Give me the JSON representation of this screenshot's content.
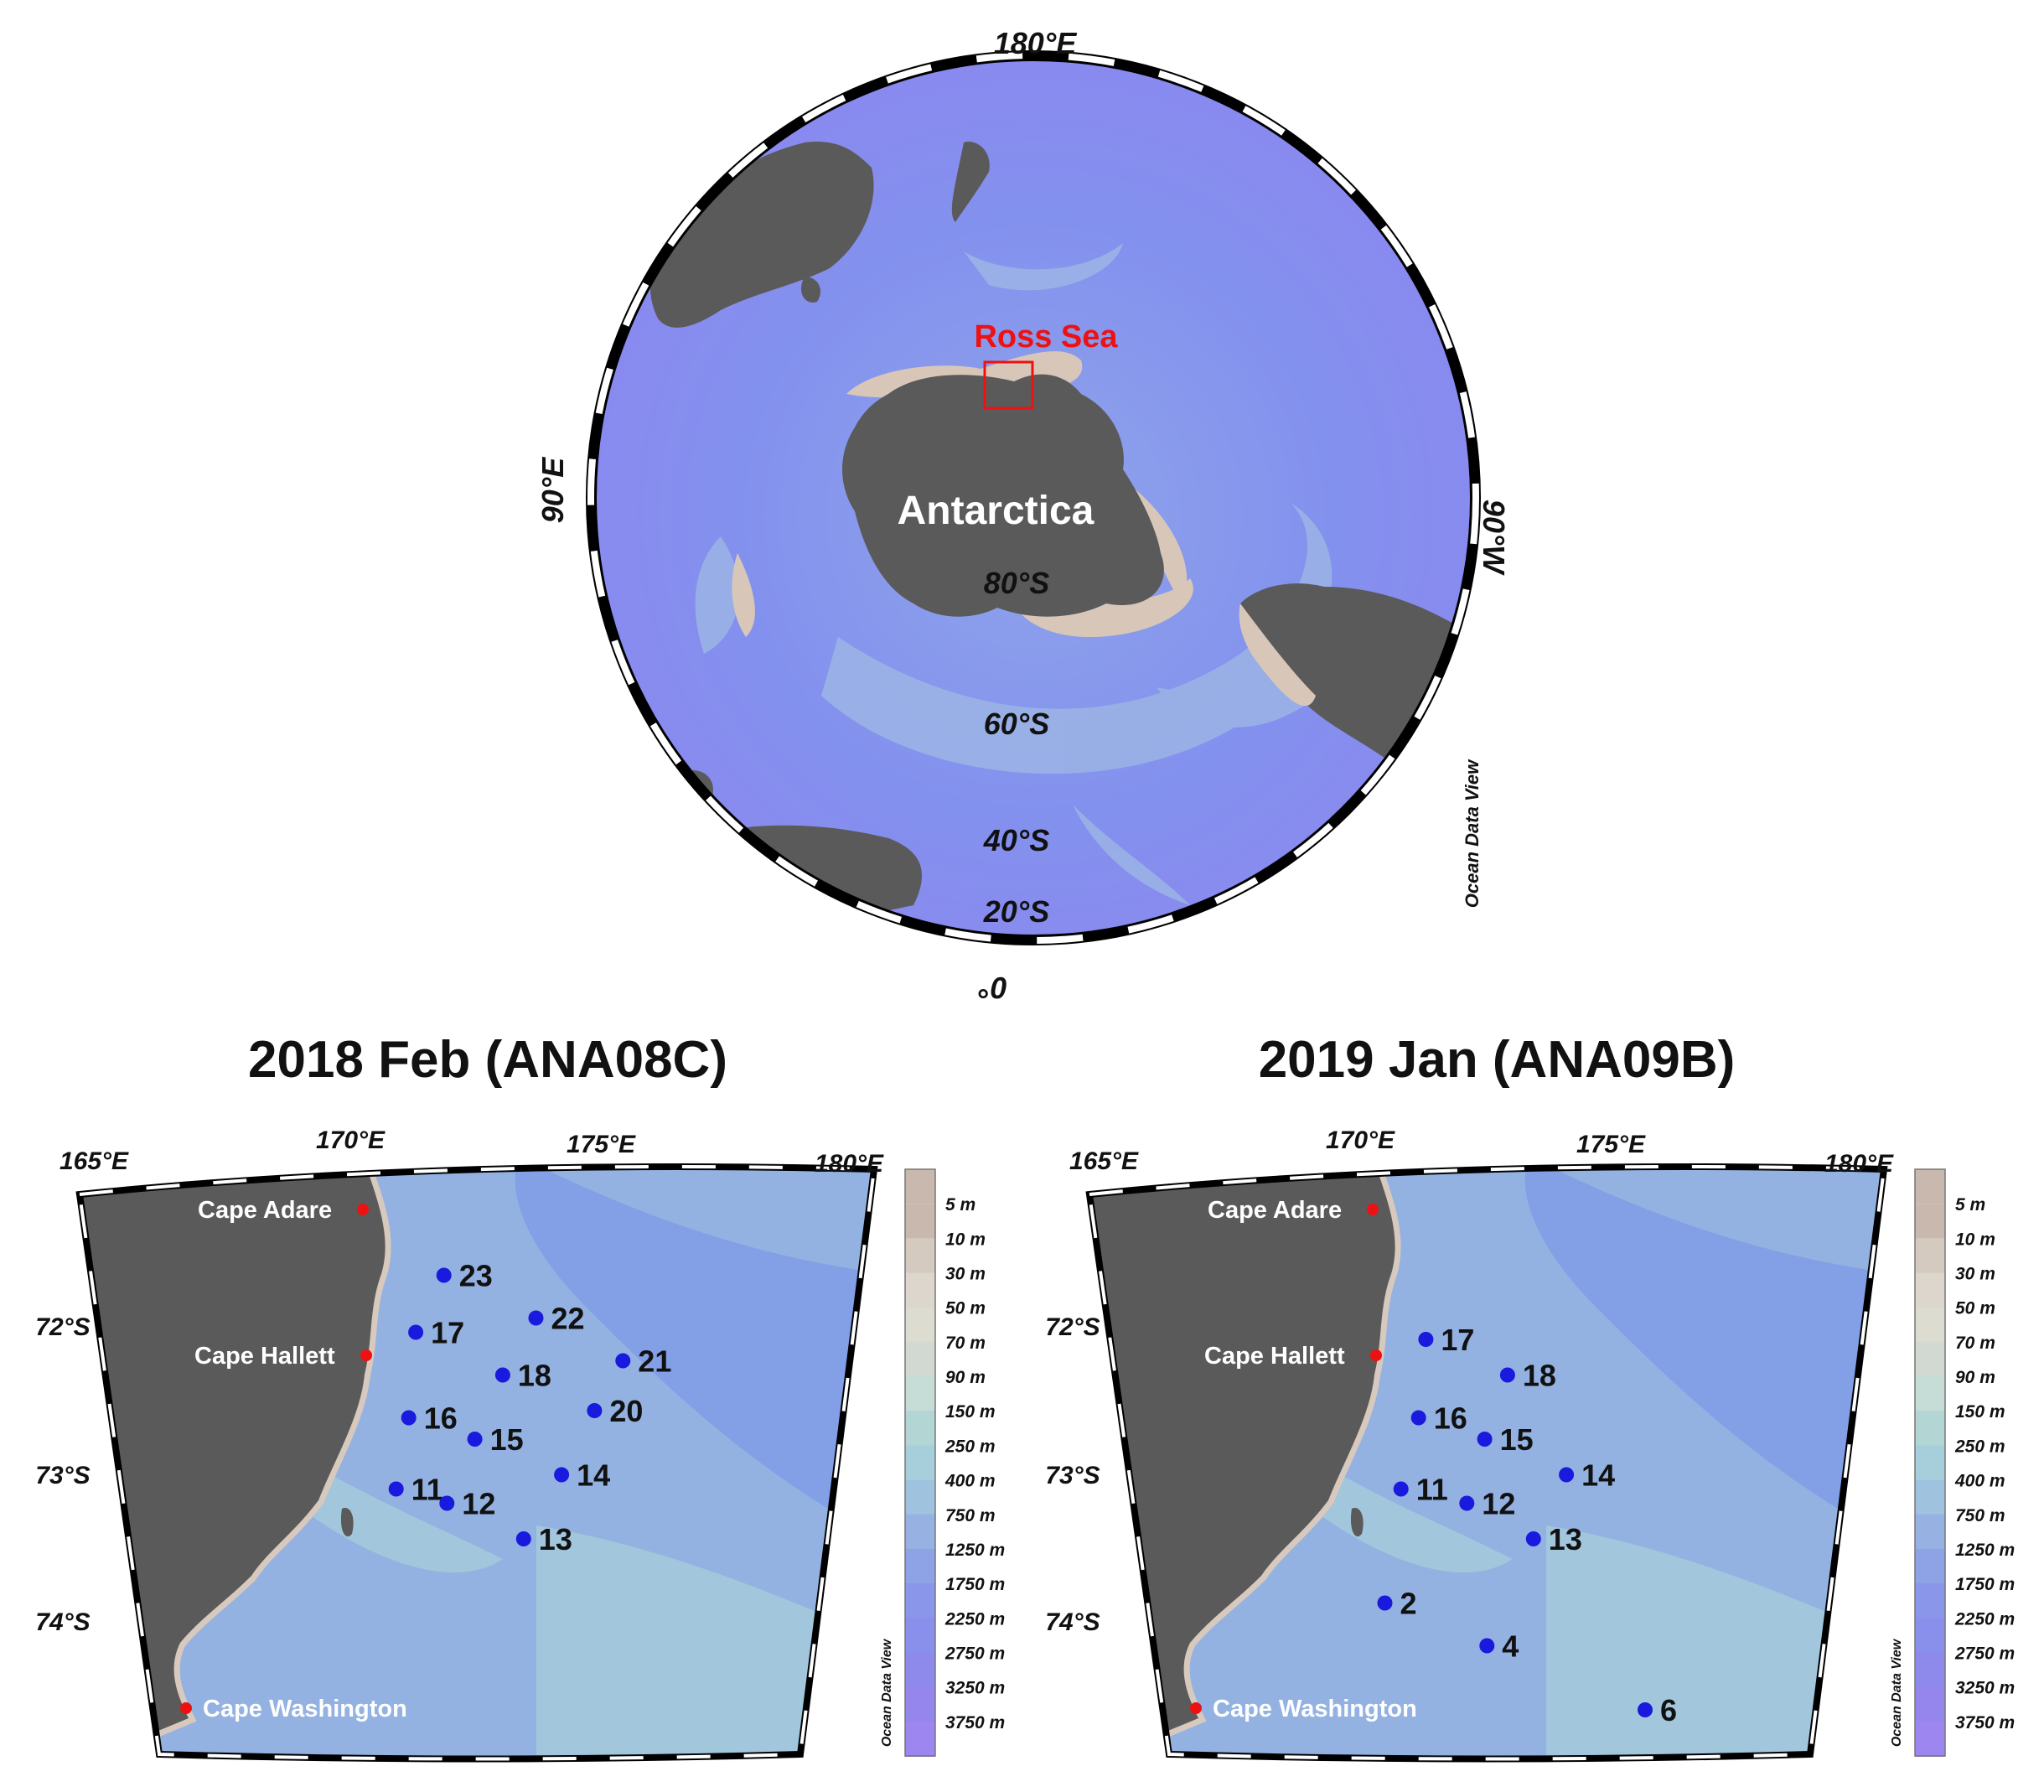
{
  "globe": {
    "labels": {
      "top": "180°E",
      "left": "90°E",
      "right": "90°W",
      "bottom": "0°",
      "region": "Ross Sea",
      "continent": "Antarctica",
      "lat80": "80°S",
      "lat60": "60°S",
      "lat40": "40°S",
      "lat20": "20°S"
    },
    "watermark": "Ocean Data View"
  },
  "maps": [
    {
      "title": "2018 Feb (ANA08C)",
      "lon_labels": [
        "165°E",
        "170°E",
        "175°E",
        "180°E"
      ],
      "lat_labels": [
        "72°S",
        "73°S",
        "74°S"
      ],
      "places": [
        "Cape Adare",
        "Cape Hallett",
        "Cape Washington"
      ],
      "stations": [
        {
          "id": "23",
          "lon": 172.2,
          "lat": -71.45
        },
        {
          "id": "22",
          "lon": 174.0,
          "lat": -71.75
        },
        {
          "id": "17",
          "lon": 171.6,
          "lat": -71.85
        },
        {
          "id": "21",
          "lon": 175.7,
          "lat": -72.05
        },
        {
          "id": "18",
          "lon": 173.3,
          "lat": -72.15
        },
        {
          "id": "16",
          "lon": 171.4,
          "lat": -72.45
        },
        {
          "id": "20",
          "lon": 175.1,
          "lat": -72.4
        },
        {
          "id": "15",
          "lon": 172.7,
          "lat": -72.6
        },
        {
          "id": "14",
          "lon": 174.4,
          "lat": -72.85
        },
        {
          "id": "11",
          "lon": 171.1,
          "lat": -72.95
        },
        {
          "id": "12",
          "lon": 172.1,
          "lat": -73.05
        },
        {
          "id": "13",
          "lon": 173.6,
          "lat": -73.3
        }
      ],
      "watermark": "Ocean Data View"
    },
    {
      "title": "2019 Jan (ANA09B)",
      "lon_labels": [
        "165°E",
        "170°E",
        "175°E",
        "180°E"
      ],
      "lat_labels": [
        "72°S",
        "73°S",
        "74°S"
      ],
      "places": [
        "Cape Adare",
        "Cape Hallett",
        "Cape Washington"
      ],
      "stations": [
        {
          "id": "17",
          "lon": 171.6,
          "lat": -71.9
        },
        {
          "id": "18",
          "lon": 173.2,
          "lat": -72.15
        },
        {
          "id": "16",
          "lon": 171.4,
          "lat": -72.45
        },
        {
          "id": "15",
          "lon": 172.7,
          "lat": -72.6
        },
        {
          "id": "14",
          "lon": 174.3,
          "lat": -72.85
        },
        {
          "id": "11",
          "lon": 171.0,
          "lat": -72.95
        },
        {
          "id": "12",
          "lon": 172.3,
          "lat": -73.05
        },
        {
          "id": "13",
          "lon": 173.6,
          "lat": -73.3
        },
        {
          "id": "2",
          "lon": 170.6,
          "lat": -73.75
        },
        {
          "id": "4",
          "lon": 172.6,
          "lat": -74.05
        },
        {
          "id": "6",
          "lon": 175.7,
          "lat": -74.5
        }
      ],
      "watermark": "Ocean Data View"
    }
  ],
  "depth_legend": {
    "levels": [
      "5 m",
      "10 m",
      "30 m",
      "50 m",
      "70 m",
      "90 m",
      "150 m",
      "250 m",
      "400 m",
      "750 m",
      "1250 m",
      "1750 m",
      "2250 m",
      "2750 m",
      "3250 m",
      "3750 m"
    ],
    "colors": [
      "#c9b8ad",
      "#d5cabf",
      "#dcd6cc",
      "#dcdcd0",
      "#d2d8d2",
      "#c6dcd6",
      "#b3d6d5",
      "#a7cedb",
      "#9fc2df",
      "#96b1e2",
      "#8ea2e6",
      "#8a96e9",
      "#8990eb",
      "#8d8aec",
      "#9586ee",
      "#9d86f0"
    ]
  },
  "colors": {
    "land": "#5a5a5a",
    "ocean_deep": "#8d8cf0",
    "ocean_mid": "#7d95e8",
    "shelf": "#9cc0de",
    "shallow": "#d7c9bd",
    "station": "#1a1adf",
    "place_marker": "#ee1111",
    "region_box": "#ee1111"
  }
}
